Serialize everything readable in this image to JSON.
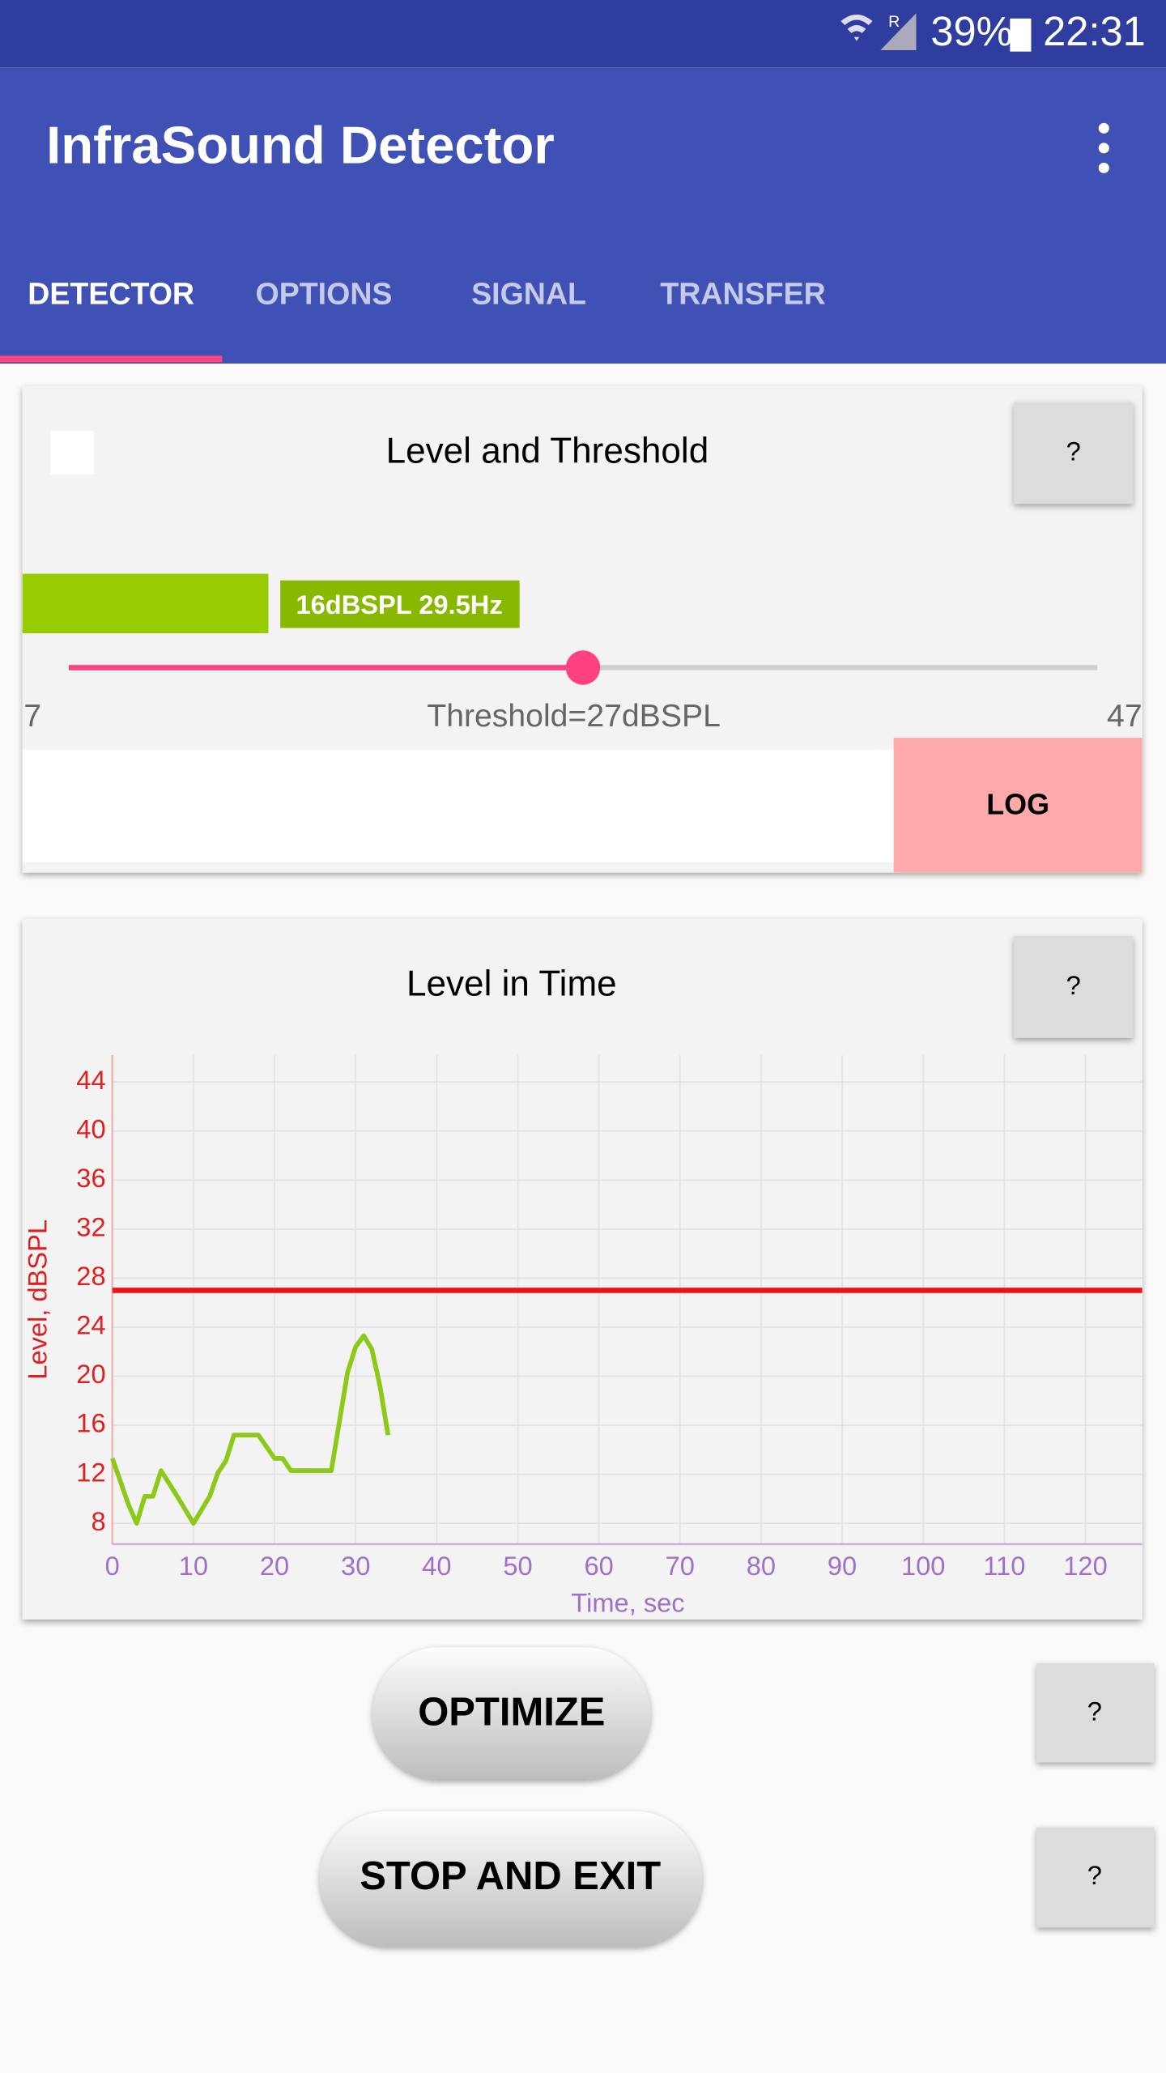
{
  "status_bar": {
    "roaming": "R",
    "battery": "39%",
    "time": "22:31"
  },
  "app_bar": {
    "title": "InfraSound Detector"
  },
  "tabs": {
    "items": [
      "DETECTOR",
      "OPTIONS",
      "SIGNAL",
      "TRANSFER"
    ],
    "selected": 0
  },
  "level_card": {
    "title": "Level and Threshold",
    "help": "?",
    "level_label": "16dBSPL 29.5Hz",
    "slider": {
      "min": 7,
      "max": 47,
      "value": 27
    },
    "threshold_label": "Threshold=27dBSPL",
    "log_button": "LOG"
  },
  "chart_card": {
    "title": "Level in Time",
    "help": "?"
  },
  "chart_data": {
    "type": "line",
    "xlabel": "Time, sec",
    "ylabel": "Level, dBSPL",
    "x": [
      0,
      2,
      3,
      4,
      5,
      6,
      8,
      10,
      12,
      13,
      14,
      15,
      18,
      20,
      21,
      22,
      27,
      29,
      30,
      31,
      32,
      33,
      34
    ],
    "series": [
      {
        "color": "#8cc919",
        "values": [
          13.3,
          9.5,
          8,
          10.2,
          10.2,
          12.3,
          10.2,
          8,
          10.2,
          12.1,
          13.1,
          15.2,
          15.2,
          13.3,
          13.3,
          12.3,
          12.3,
          20.3,
          22.4,
          23.3,
          22.2,
          19.2,
          15.2
        ]
      }
    ],
    "hlines": [
      {
        "value": 27,
        "color": "#ee1111"
      }
    ],
    "xlim": [
      0,
      127
    ],
    "ylim": [
      6.3,
      46.2
    ],
    "xticks": [
      0,
      10,
      20,
      30,
      40,
      50,
      60,
      70,
      80,
      90,
      100,
      110,
      120
    ],
    "yticks": [
      8,
      12,
      16,
      20,
      24,
      28,
      32,
      36,
      40,
      44
    ],
    "grid": true,
    "x_axis_color": "#a070c8",
    "y_axis_color": "#e02020"
  },
  "buttons": {
    "optimize": "OPTIMIZE",
    "optimize_help": "?",
    "stop": "STOP AND EXIT",
    "stop_help": "?"
  }
}
